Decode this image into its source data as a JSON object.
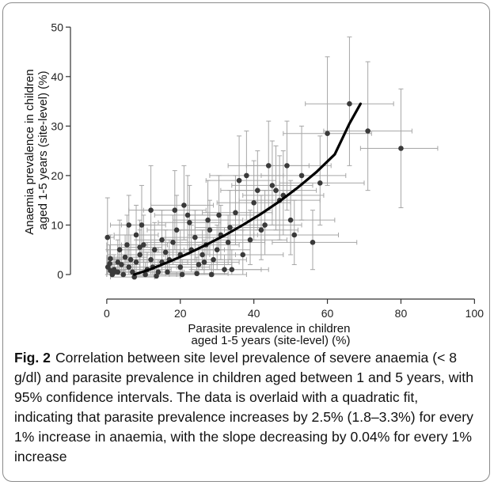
{
  "chart_data": {
    "type": "scatter",
    "xlabel": [
      "Parasite prevalence in children",
      "aged 1-5 years (site-level) (%)"
    ],
    "ylabel": [
      "Anaemia prevalence in children",
      "aged 1-5 years (site-level) (%)"
    ],
    "xlim": [
      -6,
      101
    ],
    "ylim": [
      -4,
      51
    ],
    "xticks": [
      0,
      20,
      40,
      60,
      80,
      100
    ],
    "yticks": [
      0,
      10,
      20,
      30,
      40,
      50
    ],
    "series": [
      {
        "kind": "points_with_95ci",
        "points": [
          [
            0.3,
            1.5,
            0,
            3.5,
            0,
            5
          ],
          [
            1,
            3.2,
            0,
            5.5,
            0,
            8
          ],
          [
            0.2,
            7.5,
            0,
            2,
            0,
            15.5
          ],
          [
            2,
            1,
            0,
            6,
            0,
            4
          ],
          [
            3,
            0.5,
            0,
            7.5,
            0,
            3
          ],
          [
            1.5,
            0,
            0,
            4.5,
            0,
            2.5
          ],
          [
            4,
            2,
            0,
            9,
            0,
            6
          ],
          [
            5,
            3.5,
            0,
            11,
            0,
            8
          ],
          [
            6,
            1.5,
            0,
            12,
            0,
            5
          ],
          [
            3.5,
            5,
            0,
            9,
            1,
            11
          ],
          [
            7,
            0.5,
            1,
            13,
            0,
            3
          ],
          [
            8,
            2.5,
            2,
            14,
            0,
            7
          ],
          [
            9,
            4,
            3,
            15.5,
            0,
            9
          ],
          [
            10,
            6,
            4,
            16.5,
            1,
            12
          ],
          [
            11,
            1,
            4.5,
            17.5,
            0,
            4.5
          ],
          [
            12,
            3,
            5,
            18.5,
            0,
            8
          ],
          [
            13,
            5,
            6,
            20,
            1,
            10.5
          ],
          [
            14,
            0.5,
            7,
            21,
            0,
            3
          ],
          [
            15,
            2.5,
            8,
            22,
            0,
            7
          ],
          [
            16,
            4.5,
            9,
            23,
            0,
            9
          ],
          [
            9.5,
            10,
            4,
            16,
            4,
            18
          ],
          [
            12,
            13,
            6,
            19,
            5,
            22
          ],
          [
            18,
            6.5,
            10,
            26,
            2,
            12
          ],
          [
            19,
            9,
            11,
            27,
            3,
            16
          ],
          [
            21,
            14,
            12,
            29,
            7,
            22
          ],
          [
            22,
            12,
            13,
            31,
            5,
            20
          ],
          [
            17,
            3,
            10,
            24,
            0,
            7
          ],
          [
            20,
            1.5,
            12,
            28,
            0,
            5
          ],
          [
            23,
            5,
            14,
            32,
            1,
            10
          ],
          [
            24,
            7.5,
            15,
            33,
            3,
            13
          ],
          [
            25,
            2,
            16,
            34,
            0,
            6
          ],
          [
            26,
            4,
            17,
            35,
            1,
            9
          ],
          [
            27,
            6,
            18,
            36,
            2,
            11
          ],
          [
            28,
            9,
            19,
            37,
            4,
            15
          ],
          [
            29,
            3,
            20,
            38,
            0,
            7
          ],
          [
            30,
            5,
            21,
            39,
            1,
            10
          ],
          [
            31,
            8,
            22,
            41,
            3,
            14
          ],
          [
            32,
            1,
            23,
            42,
            0,
            4
          ],
          [
            33,
            6.5,
            24,
            43,
            2,
            12
          ],
          [
            35,
            12.5,
            26,
            45,
            6,
            20
          ],
          [
            36,
            19,
            27,
            46,
            10,
            28
          ],
          [
            38,
            20,
            28,
            48,
            11,
            29
          ],
          [
            40,
            14.5,
            30,
            50,
            7,
            23
          ],
          [
            42,
            9,
            32,
            52,
            3,
            16
          ],
          [
            44,
            22,
            33,
            55,
            13,
            31
          ],
          [
            46,
            17,
            35,
            57,
            9,
            26
          ],
          [
            47,
            15,
            36,
            58,
            7,
            24
          ],
          [
            48,
            16,
            37,
            59,
            8,
            25
          ],
          [
            49,
            22,
            38,
            61,
            13,
            31
          ],
          [
            50,
            11,
            39,
            62,
            4,
            19
          ],
          [
            41,
            17,
            31,
            51,
            9,
            25
          ],
          [
            43,
            10,
            33,
            53,
            4,
            17
          ],
          [
            45,
            18,
            34,
            56,
            10,
            27
          ],
          [
            37,
            4,
            27,
            48,
            0,
            9
          ],
          [
            39,
            7,
            29,
            49,
            2,
            13
          ],
          [
            51,
            8,
            40,
            63,
            2,
            15
          ],
          [
            53,
            20,
            42,
            65,
            11,
            30
          ],
          [
            56,
            6.5,
            45,
            68,
            1,
            13
          ],
          [
            58,
            18.5,
            47,
            70,
            10,
            28
          ],
          [
            60,
            28.5,
            48,
            72,
            18,
            44
          ],
          [
            66,
            34.5,
            54,
            78,
            22,
            48
          ],
          [
            71,
            29,
            59,
            83,
            17,
            43
          ],
          [
            80,
            25.5,
            69,
            90,
            13.5,
            37.5
          ],
          [
            6,
            10,
            1,
            12,
            4,
            16
          ],
          [
            8,
            8,
            2,
            14,
            3,
            14
          ],
          [
            2,
            0.5,
            0,
            7,
            0,
            2.5
          ],
          [
            4.5,
            0,
            0,
            10,
            0,
            2
          ],
          [
            7.5,
            -0.5,
            1,
            13,
            0,
            2
          ],
          [
            10.5,
            0,
            4,
            17,
            0,
            2.5
          ],
          [
            13.5,
            -0.3,
            7,
            20,
            0,
            2
          ],
          [
            20.5,
            0,
            13,
            28,
            0,
            3
          ],
          [
            16.5,
            0.5,
            9,
            24,
            0,
            4
          ],
          [
            24.5,
            0.2,
            16,
            33,
            0,
            3.5
          ],
          [
            28.5,
            0,
            19,
            38,
            0,
            3
          ],
          [
            34,
            1,
            25,
            44,
            0,
            5
          ],
          [
            22.5,
            10.5,
            14,
            31,
            4,
            18
          ],
          [
            18.5,
            13,
            10,
            27,
            5,
            21
          ],
          [
            27.5,
            11,
            18,
            37,
            4,
            19
          ],
          [
            30.5,
            12,
            21,
            40,
            5,
            20
          ],
          [
            33.5,
            9.5,
            24,
            43,
            3,
            17
          ],
          [
            26.5,
            2.5,
            17,
            36,
            0,
            7
          ],
          [
            20,
            4,
            12,
            28,
            1,
            9
          ],
          [
            15,
            7,
            8,
            22,
            2,
            13
          ],
          [
            12.5,
            1.5,
            6,
            19,
            0,
            5
          ],
          [
            9,
            5.5,
            3,
            15,
            1,
            11
          ],
          [
            6.5,
            3,
            1,
            12,
            0,
            8
          ],
          [
            5.5,
            6,
            0,
            11,
            1,
            12
          ],
          [
            3,
            2.5,
            0,
            8,
            0,
            7
          ],
          [
            1,
            0.8,
            0,
            5,
            0,
            4
          ],
          [
            0.8,
            2.2,
            0,
            5,
            0,
            6
          ]
        ]
      },
      {
        "kind": "quadratic_fit",
        "x": [
          7.5,
          12,
          17,
          22,
          27,
          32,
          37,
          42,
          47,
          52,
          57,
          62,
          66,
          69
        ],
        "y": [
          0,
          1.1,
          2.6,
          4.2,
          6.0,
          7.9,
          10.0,
          12.3,
          14.8,
          17.6,
          20.7,
          24.3,
          30.5,
          34.5
        ]
      }
    ],
    "grid": false,
    "colors": {
      "point": "#3a3a3a",
      "errorbar": "#a6a6a6",
      "fit": "#000000",
      "axis": "#333333"
    }
  },
  "caption": {
    "label": "Fig. 2",
    "text": "Correlation between site level prevalence of severe anaemia (< 8 g/dl) and parasite prevalence in children aged between 1 and 5 years, with 95% confidence intervals. The data is overlaid with a quadratic fit, indicating that parasite prevalence increases by 2.5% (1.8–3.3%) for every 1% increase in anaemia, with the slope decreasing by 0.04% for every 1% increase"
  }
}
